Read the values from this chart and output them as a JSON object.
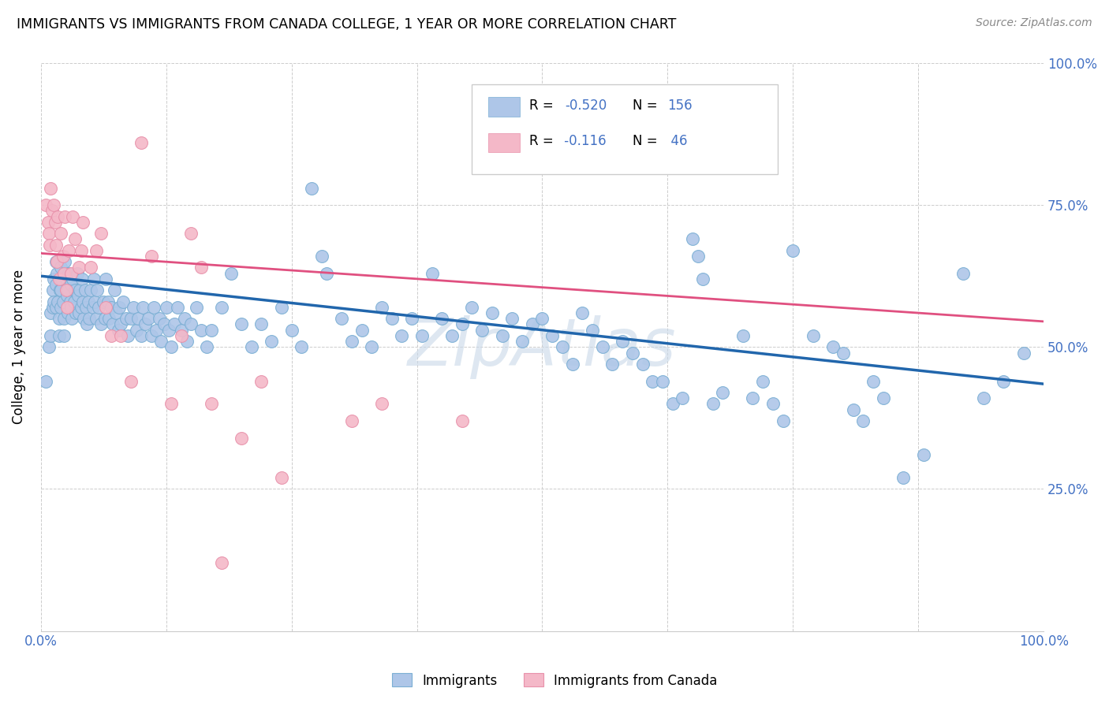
{
  "title": "IMMIGRANTS VS IMMIGRANTS FROM CANADA COLLEGE, 1 YEAR OR MORE CORRELATION CHART",
  "source": "Source: ZipAtlas.com",
  "ylabel": "College, 1 year or more",
  "xlim": [
    0,
    1.0
  ],
  "ylim": [
    0,
    1.0
  ],
  "blue_color": "#aec6e8",
  "blue_edge_color": "#7bafd4",
  "pink_color": "#f4b8c8",
  "pink_edge_color": "#e891aa",
  "blue_line_color": "#2166ac",
  "pink_line_color": "#e05080",
  "watermark": "ZipAtlas",
  "watermark_color": "#c8d8e8",
  "right_ytick_labels": [
    "100.0%",
    "75.0%",
    "50.0%",
    "25.0%",
    ""
  ],
  "right_ytick_positions": [
    1.0,
    0.75,
    0.5,
    0.25,
    0.0
  ],
  "blue_scatter": [
    [
      0.005,
      0.44
    ],
    [
      0.008,
      0.5
    ],
    [
      0.01,
      0.56
    ],
    [
      0.01,
      0.52
    ],
    [
      0.012,
      0.6
    ],
    [
      0.012,
      0.57
    ],
    [
      0.013,
      0.62
    ],
    [
      0.013,
      0.58
    ],
    [
      0.015,
      0.65
    ],
    [
      0.015,
      0.61
    ],
    [
      0.015,
      0.57
    ],
    [
      0.016,
      0.63
    ],
    [
      0.017,
      0.58
    ],
    [
      0.018,
      0.55
    ],
    [
      0.018,
      0.52
    ],
    [
      0.019,
      0.6
    ],
    [
      0.02,
      0.64
    ],
    [
      0.02,
      0.6
    ],
    [
      0.02,
      0.57
    ],
    [
      0.021,
      0.62
    ],
    [
      0.022,
      0.58
    ],
    [
      0.023,
      0.55
    ],
    [
      0.023,
      0.52
    ],
    [
      0.024,
      0.65
    ],
    [
      0.025,
      0.62
    ],
    [
      0.026,
      0.59
    ],
    [
      0.027,
      0.56
    ],
    [
      0.027,
      0.6
    ],
    [
      0.028,
      0.63
    ],
    [
      0.029,
      0.58
    ],
    [
      0.03,
      0.61
    ],
    [
      0.03,
      0.57
    ],
    [
      0.031,
      0.55
    ],
    [
      0.032,
      0.62
    ],
    [
      0.033,
      0.58
    ],
    [
      0.034,
      0.6
    ],
    [
      0.035,
      0.56
    ],
    [
      0.036,
      0.63
    ],
    [
      0.037,
      0.59
    ],
    [
      0.038,
      0.56
    ],
    [
      0.039,
      0.6
    ],
    [
      0.04,
      0.57
    ],
    [
      0.041,
      0.62
    ],
    [
      0.042,
      0.58
    ],
    [
      0.043,
      0.55
    ],
    [
      0.044,
      0.6
    ],
    [
      0.045,
      0.57
    ],
    [
      0.046,
      0.54
    ],
    [
      0.047,
      0.58
    ],
    [
      0.048,
      0.55
    ],
    [
      0.05,
      0.6
    ],
    [
      0.052,
      0.57
    ],
    [
      0.053,
      0.62
    ],
    [
      0.054,
      0.58
    ],
    [
      0.055,
      0.55
    ],
    [
      0.056,
      0.6
    ],
    [
      0.058,
      0.57
    ],
    [
      0.06,
      0.54
    ],
    [
      0.062,
      0.58
    ],
    [
      0.064,
      0.55
    ],
    [
      0.065,
      0.62
    ],
    [
      0.067,
      0.58
    ],
    [
      0.068,
      0.55
    ],
    [
      0.07,
      0.57
    ],
    [
      0.072,
      0.54
    ],
    [
      0.073,
      0.6
    ],
    [
      0.075,
      0.56
    ],
    [
      0.077,
      0.53
    ],
    [
      0.078,
      0.57
    ],
    [
      0.08,
      0.54
    ],
    [
      0.082,
      0.58
    ],
    [
      0.085,
      0.55
    ],
    [
      0.087,
      0.52
    ],
    [
      0.09,
      0.55
    ],
    [
      0.092,
      0.57
    ],
    [
      0.095,
      0.53
    ],
    [
      0.097,
      0.55
    ],
    [
      0.1,
      0.52
    ],
    [
      0.102,
      0.57
    ],
    [
      0.104,
      0.54
    ],
    [
      0.107,
      0.55
    ],
    [
      0.11,
      0.52
    ],
    [
      0.113,
      0.57
    ],
    [
      0.115,
      0.53
    ],
    [
      0.118,
      0.55
    ],
    [
      0.12,
      0.51
    ],
    [
      0.123,
      0.54
    ],
    [
      0.125,
      0.57
    ],
    [
      0.128,
      0.53
    ],
    [
      0.13,
      0.5
    ],
    [
      0.133,
      0.54
    ],
    [
      0.136,
      0.57
    ],
    [
      0.14,
      0.53
    ],
    [
      0.143,
      0.55
    ],
    [
      0.146,
      0.51
    ],
    [
      0.15,
      0.54
    ],
    [
      0.155,
      0.57
    ],
    [
      0.16,
      0.53
    ],
    [
      0.165,
      0.5
    ],
    [
      0.17,
      0.53
    ],
    [
      0.18,
      0.57
    ],
    [
      0.19,
      0.63
    ],
    [
      0.2,
      0.54
    ],
    [
      0.21,
      0.5
    ],
    [
      0.22,
      0.54
    ],
    [
      0.23,
      0.51
    ],
    [
      0.24,
      0.57
    ],
    [
      0.25,
      0.53
    ],
    [
      0.26,
      0.5
    ],
    [
      0.27,
      0.78
    ],
    [
      0.28,
      0.66
    ],
    [
      0.285,
      0.63
    ],
    [
      0.3,
      0.55
    ],
    [
      0.31,
      0.51
    ],
    [
      0.32,
      0.53
    ],
    [
      0.33,
      0.5
    ],
    [
      0.34,
      0.57
    ],
    [
      0.35,
      0.55
    ],
    [
      0.36,
      0.52
    ],
    [
      0.37,
      0.55
    ],
    [
      0.38,
      0.52
    ],
    [
      0.39,
      0.63
    ],
    [
      0.4,
      0.55
    ],
    [
      0.41,
      0.52
    ],
    [
      0.42,
      0.54
    ],
    [
      0.43,
      0.57
    ],
    [
      0.44,
      0.53
    ],
    [
      0.45,
      0.56
    ],
    [
      0.46,
      0.52
    ],
    [
      0.47,
      0.55
    ],
    [
      0.48,
      0.51
    ],
    [
      0.49,
      0.54
    ],
    [
      0.5,
      0.55
    ],
    [
      0.51,
      0.52
    ],
    [
      0.52,
      0.5
    ],
    [
      0.53,
      0.47
    ],
    [
      0.54,
      0.56
    ],
    [
      0.55,
      0.53
    ],
    [
      0.56,
      0.5
    ],
    [
      0.57,
      0.47
    ],
    [
      0.58,
      0.51
    ],
    [
      0.59,
      0.49
    ],
    [
      0.6,
      0.47
    ],
    [
      0.61,
      0.44
    ],
    [
      0.62,
      0.44
    ],
    [
      0.63,
      0.4
    ],
    [
      0.64,
      0.41
    ],
    [
      0.65,
      0.69
    ],
    [
      0.655,
      0.66
    ],
    [
      0.66,
      0.62
    ],
    [
      0.67,
      0.4
    ],
    [
      0.68,
      0.42
    ],
    [
      0.7,
      0.52
    ],
    [
      0.71,
      0.41
    ],
    [
      0.72,
      0.44
    ],
    [
      0.73,
      0.4
    ],
    [
      0.74,
      0.37
    ],
    [
      0.75,
      0.67
    ],
    [
      0.77,
      0.52
    ],
    [
      0.79,
      0.5
    ],
    [
      0.8,
      0.49
    ],
    [
      0.81,
      0.39
    ],
    [
      0.82,
      0.37
    ],
    [
      0.83,
      0.44
    ],
    [
      0.84,
      0.41
    ],
    [
      0.86,
      0.27
    ],
    [
      0.88,
      0.31
    ],
    [
      0.92,
      0.63
    ],
    [
      0.94,
      0.41
    ],
    [
      0.96,
      0.44
    ],
    [
      0.98,
      0.49
    ]
  ],
  "pink_scatter": [
    [
      0.005,
      0.75
    ],
    [
      0.007,
      0.72
    ],
    [
      0.008,
      0.7
    ],
    [
      0.009,
      0.68
    ],
    [
      0.01,
      0.78
    ],
    [
      0.011,
      0.74
    ],
    [
      0.013,
      0.75
    ],
    [
      0.014,
      0.72
    ],
    [
      0.015,
      0.68
    ],
    [
      0.016,
      0.65
    ],
    [
      0.017,
      0.73
    ],
    [
      0.018,
      0.62
    ],
    [
      0.02,
      0.7
    ],
    [
      0.022,
      0.66
    ],
    [
      0.023,
      0.63
    ],
    [
      0.024,
      0.73
    ],
    [
      0.025,
      0.6
    ],
    [
      0.026,
      0.57
    ],
    [
      0.028,
      0.67
    ],
    [
      0.03,
      0.63
    ],
    [
      0.032,
      0.73
    ],
    [
      0.034,
      0.69
    ],
    [
      0.038,
      0.64
    ],
    [
      0.04,
      0.67
    ],
    [
      0.042,
      0.72
    ],
    [
      0.05,
      0.64
    ],
    [
      0.055,
      0.67
    ],
    [
      0.06,
      0.7
    ],
    [
      0.065,
      0.57
    ],
    [
      0.07,
      0.52
    ],
    [
      0.08,
      0.52
    ],
    [
      0.09,
      0.44
    ],
    [
      0.1,
      0.86
    ],
    [
      0.11,
      0.66
    ],
    [
      0.13,
      0.4
    ],
    [
      0.14,
      0.52
    ],
    [
      0.15,
      0.7
    ],
    [
      0.16,
      0.64
    ],
    [
      0.17,
      0.4
    ],
    [
      0.18,
      0.12
    ],
    [
      0.2,
      0.34
    ],
    [
      0.22,
      0.44
    ],
    [
      0.24,
      0.27
    ],
    [
      0.31,
      0.37
    ],
    [
      0.34,
      0.4
    ],
    [
      0.42,
      0.37
    ]
  ]
}
